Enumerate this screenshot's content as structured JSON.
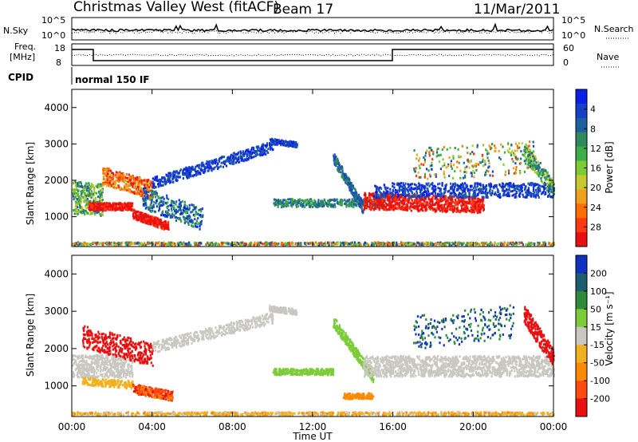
{
  "header": {
    "station": "Christmas Valley West (fitACF)",
    "beam": "Beam 17",
    "date": "11/Mar/2011"
  },
  "summary_panels": {
    "noise_label": "N.Sky",
    "noise_right_label": "N.Search",
    "noise_ticks": [
      "10^5",
      "10^0"
    ],
    "noise_right_ticks": [
      "10^5",
      "10^0"
    ],
    "freq_label_line1": "Freq.",
    "freq_label_line2": "[MHz]",
    "freq_ticks": [
      "18",
      "8"
    ],
    "nave_label": "Nave",
    "nave_ticks": [
      "60",
      "0"
    ],
    "cpid_label": "CPID",
    "cpid_value": "normal 150 IF"
  },
  "chart_data": [
    {
      "type": "heatmap",
      "name": "power",
      "xlabel": "",
      "ylabel": "Slant Range [km]",
      "x_ticks": [
        "00:00",
        "04:00",
        "08:00",
        "12:00",
        "16:00",
        "20:00",
        "00:00"
      ],
      "xlim_hours": [
        0,
        24
      ],
      "y_ticks": [
        1000,
        2000,
        3000,
        4000
      ],
      "ylim_km": [
        180,
        4500
      ],
      "colorbar_label": "Power [dB]",
      "colorbar_ticks": [
        "4",
        "8",
        "12",
        "16",
        "20",
        "24",
        "28"
      ],
      "colors": [
        "#0a20e8",
        "#1540c8",
        "#1f5fa0",
        "#2f8a5e",
        "#3cae48",
        "#7dcc32",
        "#c8c830",
        "#f0a020",
        "#ff7000",
        "#ff3a10",
        "#e81010"
      ]
    },
    {
      "type": "heatmap",
      "name": "velocity",
      "xlabel": "Time UT",
      "ylabel": "Slant Range [km]",
      "x_ticks": [
        "00:00",
        "04:00",
        "08:00",
        "12:00",
        "16:00",
        "20:00",
        "00:00"
      ],
      "xlim_hours": [
        0,
        24
      ],
      "y_ticks": [
        1000,
        2000,
        3000,
        4000
      ],
      "ylim_km": [
        180,
        4500
      ],
      "colorbar_label": "Velocity [m s⁻¹]",
      "colorbar_ticks": [
        "200",
        "100",
        "50",
        "15",
        "-15",
        "-50",
        "-100",
        "-200"
      ],
      "colors": [
        "#1030c0",
        "#1c5e70",
        "#2f8a3a",
        "#7ccc3a",
        "#c8c8c0",
        "#f0b020",
        "#ff8a00",
        "#ff4a10",
        "#e81010"
      ]
    }
  ]
}
